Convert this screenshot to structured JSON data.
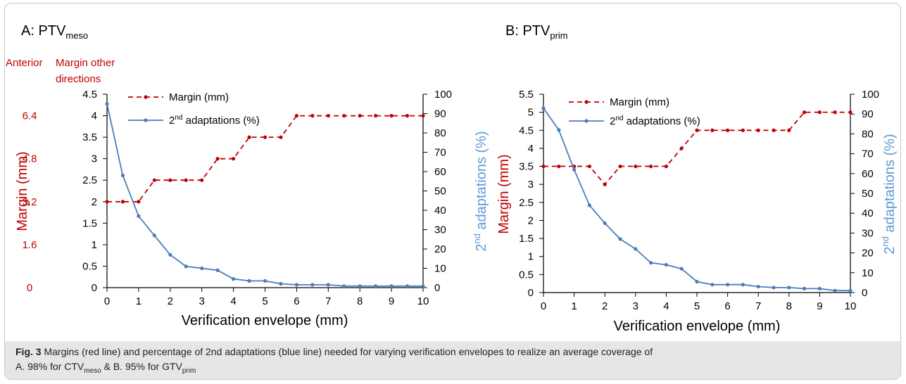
{
  "colors": {
    "margin": "#c00000",
    "adaptation": "#4a7ebb",
    "axis": "#000000",
    "red_label": "#c00000",
    "blue_label": "#5b9bd5"
  },
  "chart_data": [
    {
      "type": "line",
      "panel_title": "A: PTV",
      "panel_title_sub": "meso",
      "xlabel": "Verification envelope (mm)",
      "xlim": [
        0,
        10
      ],
      "x_ticks": [
        "0",
        "1",
        "2",
        "3",
        "4",
        "5",
        "6",
        "7",
        "8",
        "9",
        "10"
      ],
      "ylabel_left": "Margin (mm)",
      "ylim_left": [
        0,
        4.5
      ],
      "y_ticks_left": [
        "0",
        "0.5",
        "1",
        "1.5",
        "2",
        "2.5",
        "3",
        "3.5",
        "4",
        "4.5"
      ],
      "extra_axis_header_1": "Anterior",
      "extra_axis_header_2_line1": "Margin other",
      "extra_axis_header_2_line2": "directions",
      "extra_axis_ticks": [
        "0",
        "1.6",
        "3.2",
        "4.8",
        "6.4"
      ],
      "ylabel_right": "2nd adaptations (%)",
      "ylabel_right_sup": "nd",
      "ylim_right": [
        0,
        100
      ],
      "y_ticks_right": [
        "0",
        "10",
        "20",
        "30",
        "40",
        "50",
        "60",
        "70",
        "80",
        "90",
        "100"
      ],
      "legend": [
        "Margin (mm)",
        "2nd adaptations (%)"
      ],
      "legend_position": "top-left",
      "x": [
        0,
        0.5,
        1,
        1.5,
        2,
        2.5,
        3,
        3.5,
        4,
        4.5,
        5,
        5.5,
        6,
        6.5,
        7,
        7.5,
        8,
        8.5,
        9,
        9.5,
        10
      ],
      "series": [
        {
          "name": "Margin (mm)",
          "axis": "left",
          "style": "dashed",
          "values": [
            2,
            2,
            2,
            2.5,
            2.5,
            2.5,
            2.5,
            3,
            3,
            3.5,
            3.5,
            3.5,
            4,
            4,
            4,
            4,
            4,
            4,
            4,
            4,
            4
          ]
        },
        {
          "name": "2nd adaptations (%)",
          "axis": "right",
          "style": "solid",
          "values": [
            95,
            58,
            37,
            27,
            17,
            11,
            10,
            9,
            4.5,
            3.5,
            3.5,
            2,
            1.5,
            1.5,
            1.5,
            0.8,
            0.8,
            0.8,
            0.8,
            0.8,
            0.8
          ]
        }
      ]
    },
    {
      "type": "line",
      "panel_title": "B: PTV",
      "panel_title_sub": "prim",
      "xlabel": "Verification envelope (mm)",
      "xlim": [
        0,
        10
      ],
      "x_ticks": [
        "0",
        "1",
        "2",
        "3",
        "4",
        "5",
        "6",
        "7",
        "8",
        "9",
        "10"
      ],
      "ylabel_left": "Margin (mm)",
      "ylim_left": [
        0,
        5.5
      ],
      "y_ticks_left": [
        "0",
        "0.5",
        "1",
        "1.5",
        "2",
        "2.5",
        "3",
        "3.5",
        "4",
        "4.5",
        "5",
        "5.5"
      ],
      "ylabel_right": "2nd adaptations (%)",
      "ylabel_right_sup": "nd",
      "ylim_right": [
        0,
        100
      ],
      "y_ticks_right": [
        "0",
        "10",
        "20",
        "30",
        "40",
        "50",
        "60",
        "70",
        "80",
        "90",
        "100"
      ],
      "legend": [
        "Margin (mm)",
        "2nd adaptations (%)"
      ],
      "legend_position": "top-left",
      "x": [
        0,
        0.5,
        1,
        1.5,
        2,
        2.5,
        3,
        3.5,
        4,
        4.5,
        5,
        5.5,
        6,
        6.5,
        7,
        7.5,
        8,
        8.5,
        9,
        9.5,
        10
      ],
      "series": [
        {
          "name": "Margin (mm)",
          "axis": "left",
          "style": "dashed",
          "values": [
            3.5,
            3.5,
            3.5,
            3.5,
            3,
            3.5,
            3.5,
            3.5,
            3.5,
            4,
            4.5,
            4.5,
            4.5,
            4.5,
            4.5,
            4.5,
            4.5,
            5,
            5,
            5,
            5
          ]
        },
        {
          "name": "2nd adaptations (%)",
          "axis": "right",
          "style": "solid",
          "values": [
            93,
            82,
            62,
            44,
            35,
            27,
            22,
            15,
            14,
            12,
            5.5,
            4,
            4,
            4,
            3,
            2.5,
            2.5,
            2,
            2,
            1,
            1
          ]
        }
      ]
    }
  ],
  "caption": {
    "fig_label": "Fig. 3",
    "part1": "  Margins (red line) and percentage of 2nd adaptations (blue line) needed for varying verification envelopes to realize an average coverage of",
    "part2": "A. 98% for CTV",
    "sub1": "meso",
    "part3": " & B. 95% for GTV",
    "sub2": "prim"
  }
}
